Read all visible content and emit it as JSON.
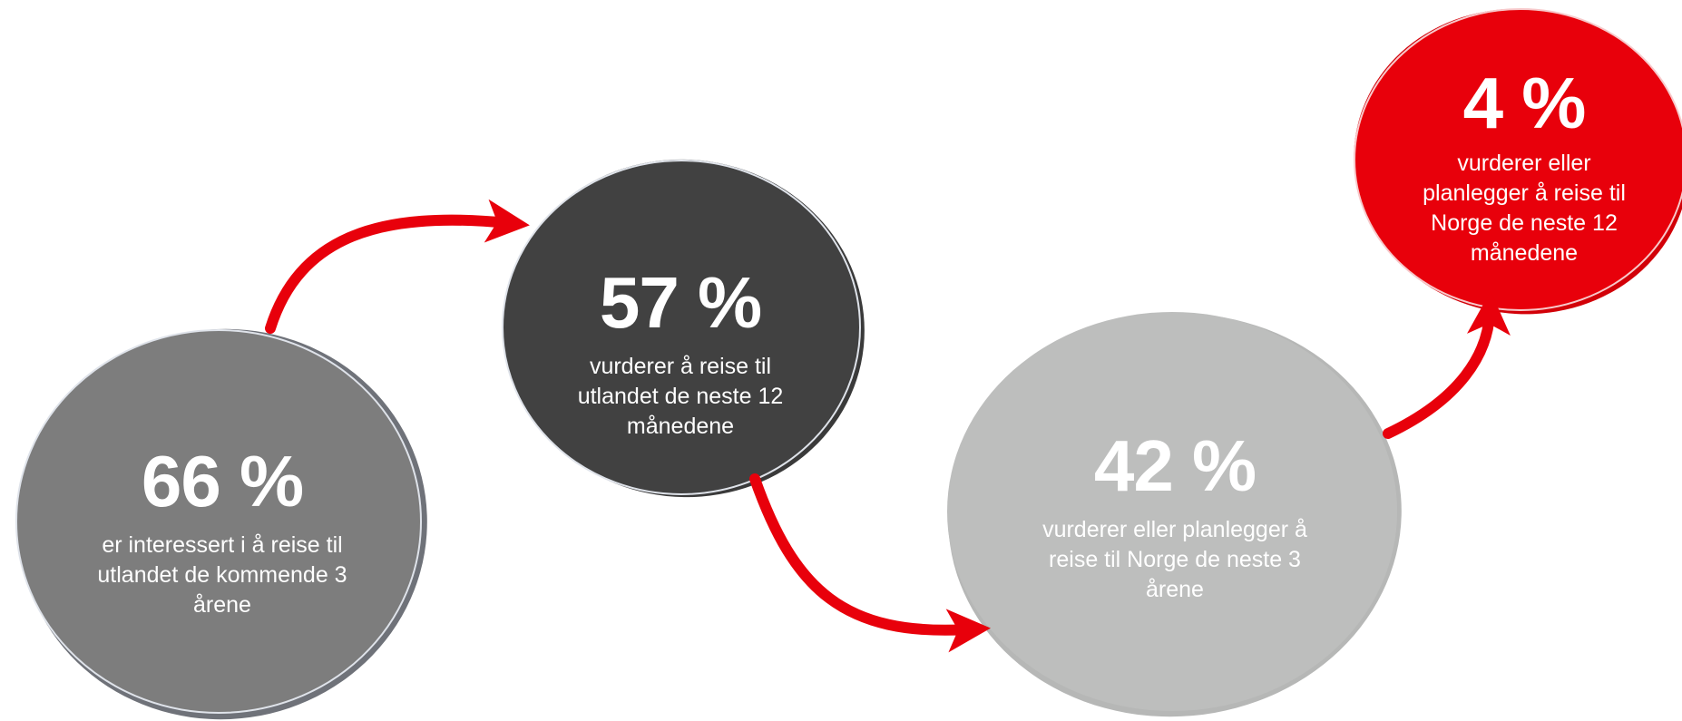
{
  "colors": {
    "arrow": "#e8000b",
    "circle_1": "#7c7c7c",
    "circle_2": "#404040",
    "circle_3": "#bcbdbc",
    "circle_4": "#e8000b",
    "text": "#ffffff"
  },
  "steps": [
    {
      "percent": "66 %",
      "description": "er interessert i å reise til utlandet de kommende 3 årene"
    },
    {
      "percent": "57 %",
      "description": "vurderer å reise til utlandet de neste 12 månedene"
    },
    {
      "percent": "42 %",
      "description": "vurderer eller planlegger å reise til Norge de neste 3 årene"
    },
    {
      "percent": "4 %",
      "description": "vurderer eller planlegger å reise til Norge de neste 12 månedene"
    }
  ]
}
